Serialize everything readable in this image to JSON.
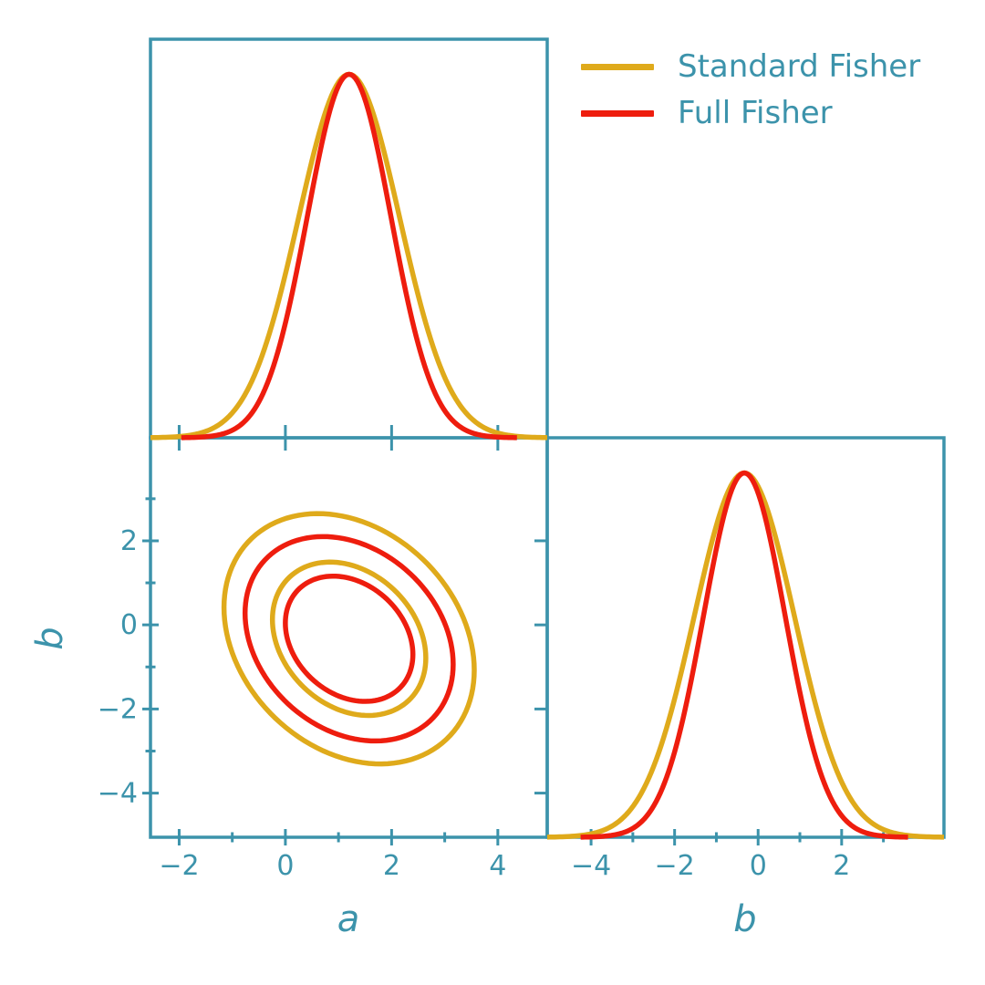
{
  "figure": {
    "background": "#ffffff",
    "axis_color": "#3c93ab",
    "text_color": "#3c93ab"
  },
  "legend": {
    "items": [
      {
        "label": "Standard Fisher",
        "color": "#dfaa1b"
      },
      {
        "label": "Full Fisher",
        "color": "#ee1d0e"
      }
    ]
  },
  "labels": {
    "a_axis": "a",
    "b_axis": "b"
  },
  "chart_data": {
    "type": "corner-plot",
    "parameters": [
      "a",
      "b"
    ],
    "fiducial": {
      "a": 1.2,
      "b": -0.33
    },
    "series": [
      {
        "name": "Standard Fisher",
        "color": "#dfaa1b",
        "sigma": {
          "a": 0.95,
          "b": 1.2
        },
        "correlation_ab": -0.25
      },
      {
        "name": "Full Fisher",
        "color": "#ee1d0e",
        "sigma": {
          "a": 0.79,
          "b": 0.98
        },
        "correlation_ab": -0.25
      }
    ],
    "contour_levels_sigma": [
      2.48,
      1.52
    ],
    "curve_extent_sigma": 4.0,
    "marginal_peak_fraction": 0.912,
    "axes": {
      "a": {
        "lim": [
          -2.54,
          4.93
        ],
        "major_ticks": [
          -2,
          0,
          2,
          4
        ],
        "minor_ticks": [
          -1,
          1,
          3
        ]
      },
      "b": {
        "lim": [
          -5.05,
          4.45
        ],
        "major_ticks": [
          -4,
          -2,
          0,
          2
        ],
        "minor_ticks": [
          -3,
          -1,
          1,
          3
        ]
      }
    },
    "panels": [
      {
        "id": "a-marginal",
        "kind": "gaussian-1d",
        "param": "a"
      },
      {
        "id": "ab-joint",
        "kind": "contour-2d",
        "x_param": "a",
        "y_param": "b"
      },
      {
        "id": "b-marginal",
        "kind": "gaussian-1d",
        "param": "b"
      }
    ],
    "legend_position": "upper right",
    "grid": false
  }
}
